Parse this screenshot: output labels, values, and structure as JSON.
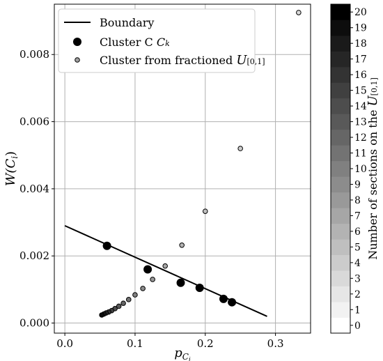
{
  "chart_data": {
    "type": "scatter",
    "xlabel": "p",
    "xlabel_sub": "C",
    "xlabel_subsub": "i",
    "ylabel": "W(C",
    "ylabel_sub": "i",
    "ylabel_close": ")",
    "xlim": [
      -0.015,
      0.35
    ],
    "ylim": [
      -0.0003,
      0.0095
    ],
    "xticks": [
      0.0,
      0.1,
      0.2,
      0.3
    ],
    "xtick_labels": [
      "0.0",
      "0.1",
      "0.2",
      "0.3"
    ],
    "yticks": [
      0.0,
      0.002,
      0.004,
      0.006,
      0.008
    ],
    "ytick_labels": [
      "0.000",
      "0.002",
      "0.004",
      "0.006",
      "0.008"
    ],
    "grid": true,
    "legend_placement": "top-left",
    "boundary": {
      "name": "Boundary",
      "x": [
        0.0,
        0.288
      ],
      "y": [
        0.0029,
        0.0002
      ]
    },
    "cluster_ck": {
      "name": "Cluster C",
      "name_sub": "k",
      "x": [
        0.06,
        0.118,
        0.165,
        0.192,
        0.226,
        0.238
      ],
      "y": [
        0.0023,
        0.0016,
        0.0012,
        0.00105,
        0.00072,
        0.00062
      ]
    },
    "cluster_fractioned": {
      "name": "Cluster from fractioned ",
      "name_symbol": "U",
      "name_sub": "[0,1]",
      "x": [
        0.333,
        0.25,
        0.2,
        0.1667,
        0.1429,
        0.125,
        0.1111,
        0.1,
        0.0909,
        0.0833,
        0.0769,
        0.0714,
        0.0667,
        0.0625,
        0.0588,
        0.0556,
        0.0526
      ],
      "y": [
        0.00925,
        0.0052,
        0.00333,
        0.00232,
        0.0017,
        0.0013,
        0.00103,
        0.00084,
        0.0007,
        0.00059,
        0.0005,
        0.00043,
        0.00037,
        0.00033,
        0.0003,
        0.00027,
        0.00024
      ],
      "sections": [
        3,
        4,
        5,
        6,
        7,
        8,
        9,
        10,
        11,
        12,
        13,
        14,
        15,
        16,
        17,
        18,
        19
      ]
    },
    "colorbar": {
      "label": "Number of sections on the ",
      "label_symbol": "U",
      "label_sub": "[0,1]",
      "min": 0,
      "max": 20,
      "ticks": [
        0,
        1,
        2,
        3,
        4,
        5,
        6,
        7,
        8,
        9,
        10,
        11,
        12,
        13,
        14,
        15,
        16,
        17,
        18,
        19,
        20
      ],
      "tick_labels": [
        "0",
        "1",
        "2",
        "3",
        "4",
        "5",
        "6",
        "7",
        "8",
        "9",
        "10",
        "11",
        "12",
        "13",
        "14",
        "15",
        "16",
        "17",
        "18",
        "19",
        "20"
      ]
    }
  }
}
